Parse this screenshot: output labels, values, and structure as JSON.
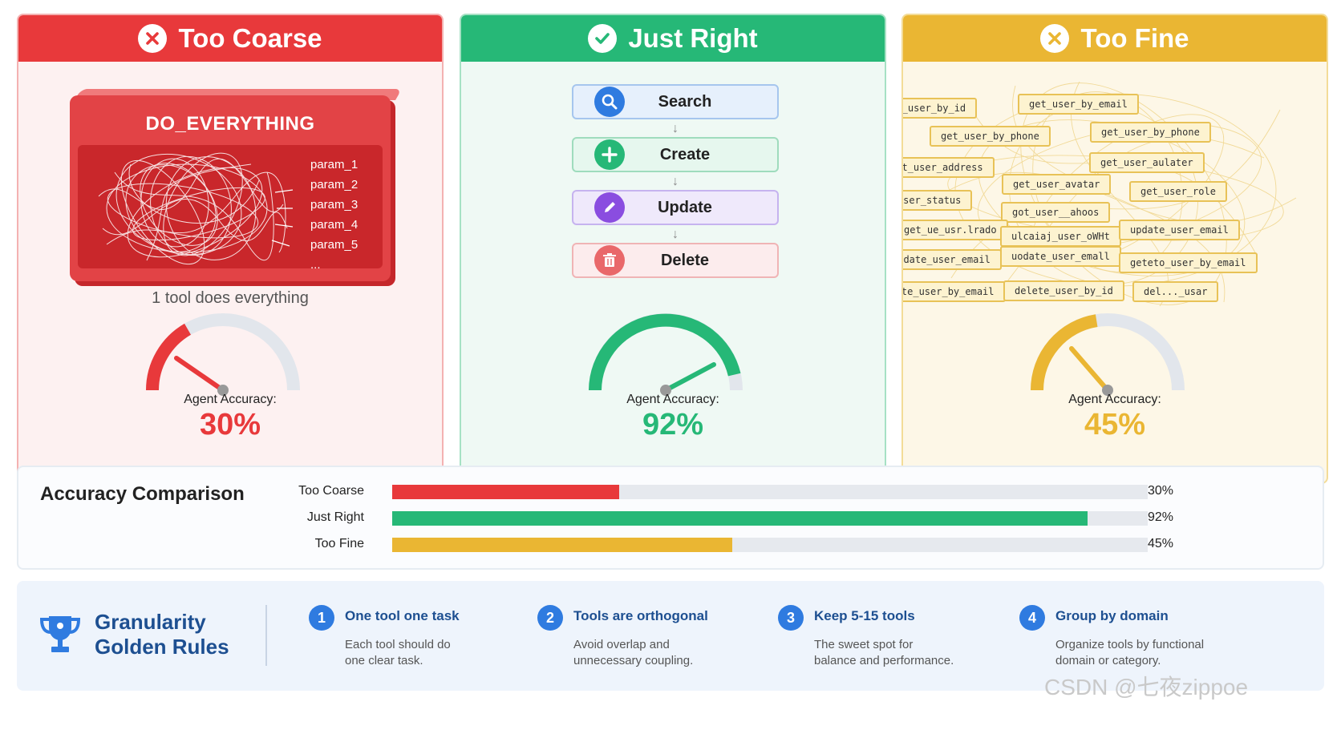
{
  "colors": {
    "coarse": "#e8393b",
    "right": "#26b877",
    "fine": "#eab633",
    "rules_accent": "#2f7be0",
    "rules_text": "#1d4f91"
  },
  "panels": {
    "coarse": {
      "title": "Too Coarse",
      "icon": "x-circle-icon",
      "tool_name": "DO_EVERYTHING",
      "params": [
        "param_1",
        "param_2",
        "param_3",
        "param_4",
        "param_5",
        "..."
      ],
      "caption": "1 tool does everything",
      "accuracy_label": "Agent Accuracy:",
      "accuracy": "30%",
      "accuracy_fraction": 0.3
    },
    "right": {
      "title": "Just Right",
      "icon": "check-circle-icon",
      "tools": [
        "Search",
        "Create",
        "Update",
        "Delete"
      ],
      "tool_icons": [
        "search-icon",
        "plus-icon",
        "pencil-icon",
        "trash-icon"
      ],
      "accuracy_label": "Agent Accuracy:",
      "accuracy": "92%",
      "accuracy_fraction": 0.92
    },
    "fine": {
      "title": "Too Fine",
      "icon": "x-circle-icon",
      "tags": [
        "get_user_by_id",
        "get_user_by_email",
        "get_user_by_phone",
        "get_user_by_phone",
        "get_user_address",
        "get_user_aulater",
        "get_user_avatar",
        "get_user_role",
        "get_user_status",
        "got_user__ahoos",
        "get_ue_usr.lrado",
        "ulcaiaj_user_oWHt",
        "update_user_email",
        "update_user_email",
        "uodate_user_emall",
        "geteto_user_by_email",
        "delete_user_by_email",
        "delete_user_by_id",
        "del..._usar"
      ],
      "accuracy_label": "Agent Accuracy:",
      "accuracy": "45%",
      "accuracy_fraction": 0.45
    }
  },
  "comparison": {
    "title": "Accuracy Comparison",
    "rows": [
      {
        "label": "Too Coarse",
        "value": 30,
        "value_label": "30%",
        "color": "#e8393b"
      },
      {
        "label": "Just Right",
        "value": 92,
        "value_label": "92%",
        "color": "#26b877"
      },
      {
        "label": "Too Fine",
        "value": 45,
        "value_label": "45%",
        "color": "#eab633"
      }
    ],
    "max": 100
  },
  "rules": {
    "icon": "trophy-icon",
    "title_line1": "Granularity",
    "title_line2": "Golden Rules",
    "items": [
      {
        "num": "1",
        "heading": "One tool one task",
        "desc1": "Each tool should do",
        "desc2": "one clear task."
      },
      {
        "num": "2",
        "heading": "Tools are orthogonal",
        "desc1": "Avoid overlap and",
        "desc2": "unnecessary coupling."
      },
      {
        "num": "3",
        "heading": "Keep 5-15 tools",
        "desc1": "The sweet spot for",
        "desc2": "balance and performance."
      },
      {
        "num": "4",
        "heading": "Group by domain",
        "desc1": "Organize tools by functional",
        "desc2": "domain or category."
      }
    ]
  },
  "watermark": "CSDN @七夜zippoe"
}
